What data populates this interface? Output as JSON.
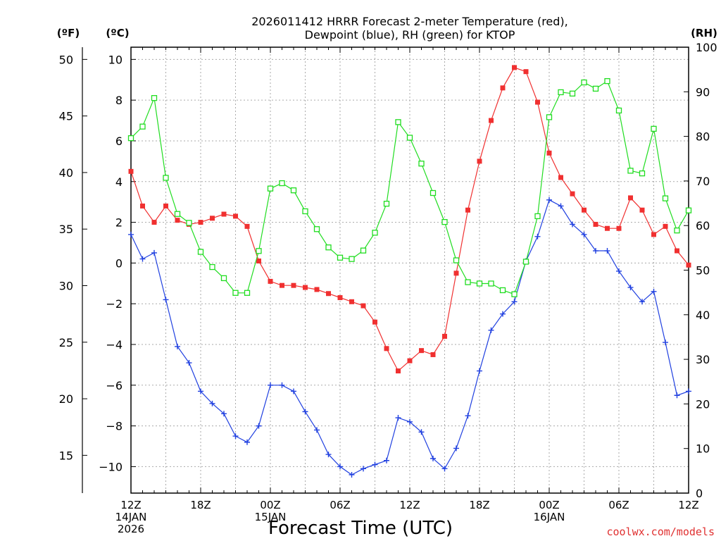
{
  "chart_data": {
    "type": "line",
    "title_lines": [
      "2026011412 HRRR Forecast 2-meter Temperature (red),",
      "Dewpoint (blue), RH (green) for KTOP"
    ],
    "unit_left_f": "(ºF)",
    "unit_left_c": "(ºC)",
    "unit_right": "(RH)",
    "xlabel": "Forecast Time (UTC)",
    "credit": "coolwx.com/models",
    "x_hours": [
      0,
      1,
      2,
      3,
      4,
      5,
      6,
      7,
      8,
      9,
      10,
      11,
      12,
      13,
      14,
      15,
      16,
      17,
      18,
      19,
      20,
      21,
      22,
      23,
      24,
      25,
      26,
      27,
      28,
      29,
      30,
      31,
      32,
      33,
      34,
      35,
      36,
      37,
      38,
      39,
      40,
      41,
      42,
      43,
      44,
      45,
      46,
      47,
      48
    ],
    "xlim": [
      0,
      48
    ],
    "x_ticks": [
      {
        "hour": 0,
        "lines": [
          "12Z",
          "14JAN",
          "2026"
        ]
      },
      {
        "hour": 6,
        "lines": [
          "18Z"
        ]
      },
      {
        "hour": 12,
        "lines": [
          "00Z",
          "15JAN"
        ]
      },
      {
        "hour": 18,
        "lines": [
          "06Z"
        ]
      },
      {
        "hour": 24,
        "lines": [
          "12Z"
        ]
      },
      {
        "hour": 30,
        "lines": [
          "18Z"
        ]
      },
      {
        "hour": 36,
        "lines": [
          "00Z",
          "16JAN"
        ]
      },
      {
        "hour": 42,
        "lines": [
          "06Z"
        ]
      },
      {
        "hour": 48,
        "lines": [
          "12Z"
        ]
      }
    ],
    "ylim_c": [
      -11.3,
      10.6
    ],
    "ylim_rh": [
      0,
      100
    ],
    "y_ticks_c": [
      "−10",
      "−8",
      "−6",
      "−4",
      "−2",
      "0",
      "2",
      "4",
      "6",
      "8",
      "10"
    ],
    "y_ticks_f": [
      "15",
      "20",
      "25",
      "30",
      "35",
      "40",
      "45",
      "50"
    ],
    "y_ticks_rh": [
      "0",
      "10",
      "20",
      "30",
      "40",
      "50",
      "60",
      "70",
      "80",
      "90",
      "100"
    ],
    "grid": true,
    "series": [
      {
        "name": "Temperature",
        "axis": "c",
        "color": "#f03030",
        "marker": "filled-square",
        "values": [
          4.5,
          2.8,
          2.0,
          2.8,
          2.1,
          1.9,
          2.0,
          2.2,
          2.4,
          2.3,
          1.8,
          0.1,
          -0.9,
          -1.1,
          -1.1,
          -1.2,
          -1.3,
          -1.5,
          -1.7,
          -1.9,
          -2.1,
          -2.9,
          -4.2,
          -5.3,
          -4.8,
          -4.3,
          -4.5,
          -3.6,
          -0.5,
          2.6,
          5.0,
          7.0,
          8.6,
          9.6,
          9.4,
          7.9,
          5.4,
          4.2,
          3.4,
          2.6,
          1.9,
          1.7,
          1.7,
          3.2,
          2.6,
          1.4,
          1.8,
          0.6,
          -0.1
        ]
      },
      {
        "name": "Dewpoint",
        "axis": "c",
        "color": "#2040e0",
        "marker": "plus",
        "values": [
          1.4,
          0.2,
          0.5,
          -1.8,
          -4.1,
          -4.9,
          -6.3,
          -6.9,
          -7.4,
          -8.5,
          -8.8,
          -8.0,
          -6.0,
          -6.0,
          -6.3,
          -7.3,
          -8.2,
          -9.4,
          -10.0,
          -10.4,
          -10.1,
          -9.9,
          -9.7,
          -7.6,
          -7.8,
          -8.3,
          -9.6,
          -10.1,
          -9.1,
          -7.5,
          -5.3,
          -3.3,
          -2.5,
          -1.9,
          0.1,
          1.3,
          3.1,
          2.8,
          1.9,
          1.4,
          0.6,
          0.6,
          -0.4,
          -1.2,
          -1.9,
          -1.4,
          -3.9,
          -6.5,
          -6.3
        ]
      },
      {
        "name": "RH",
        "axis": "rh",
        "color": "#20dd20",
        "marker": "open-square",
        "values": [
          79.6,
          82.2,
          88.6,
          70.7,
          62.6,
          60.6,
          54.1,
          50.7,
          48.2,
          44.9,
          44.9,
          54.3,
          68.3,
          69.5,
          67.9,
          63.2,
          59.2,
          55.1,
          52.8,
          52.5,
          54.4,
          58.4,
          64.9,
          83.2,
          79.7,
          73.9,
          67.3,
          60.8,
          52.2,
          47.3,
          47.0,
          47.0,
          45.5,
          44.6,
          51.9,
          62.1,
          84.3,
          89.9,
          89.6,
          92.1,
          90.7,
          92.4,
          85.8,
          72.3,
          71.7,
          81.7,
          66.1,
          58.9,
          63.4
        ]
      }
    ]
  }
}
